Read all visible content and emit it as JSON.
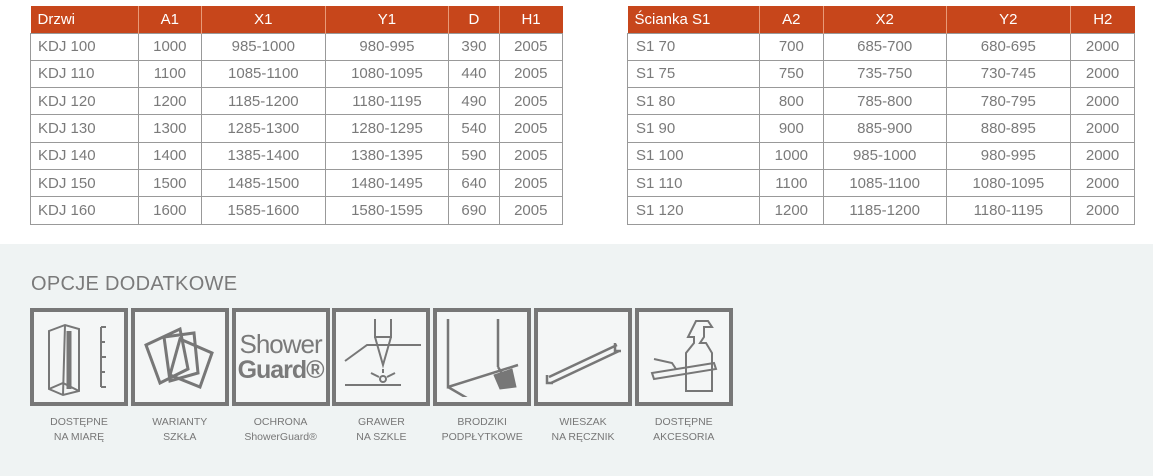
{
  "doors_table": {
    "headers": [
      "Drzwi",
      "A1",
      "X1",
      "Y1",
      "D",
      "H1"
    ],
    "rows": [
      [
        "KDJ 100",
        "1000",
        "985-1000",
        "980-995",
        "390",
        "2005"
      ],
      [
        "KDJ 110",
        "1100",
        "1085-1100",
        "1080-1095",
        "440",
        "2005"
      ],
      [
        "KDJ 120",
        "1200",
        "1185-1200",
        "1180-1195",
        "490",
        "2005"
      ],
      [
        "KDJ 130",
        "1300",
        "1285-1300",
        "1280-1295",
        "540",
        "2005"
      ],
      [
        "KDJ 140",
        "1400",
        "1385-1400",
        "1380-1395",
        "590",
        "2005"
      ],
      [
        "KDJ 150",
        "1500",
        "1485-1500",
        "1480-1495",
        "640",
        "2005"
      ],
      [
        "KDJ 160",
        "1600",
        "1585-1600",
        "1580-1595",
        "690",
        "2005"
      ]
    ]
  },
  "wall_table": {
    "headers": [
      "Ścianka S1",
      "A2",
      "X2",
      "Y2",
      "H2"
    ],
    "rows": [
      [
        "S1 70",
        "700",
        "685-700",
        "680-695",
        "2000"
      ],
      [
        "S1 75",
        "750",
        "735-750",
        "730-745",
        "2000"
      ],
      [
        "S1 80",
        "800",
        "785-800",
        "780-795",
        "2000"
      ],
      [
        "S1 90",
        "900",
        "885-900",
        "880-895",
        "2000"
      ],
      [
        "S1 100",
        "1000",
        "985-1000",
        "980-995",
        "2000"
      ],
      [
        "S1 110",
        "1100",
        "1085-1100",
        "1080-1095",
        "2000"
      ],
      [
        "S1 120",
        "1200",
        "1185-1200",
        "1180-1195",
        "2000"
      ]
    ]
  },
  "options": {
    "title": "OPCJE DODATKOWE",
    "items": [
      {
        "icon": "custom-size-icon",
        "line1": "DOSTĘPNE",
        "line2": "NA MIARĘ"
      },
      {
        "icon": "glass-variants-icon",
        "line1": "WARIANTY",
        "line2": "SZKŁA"
      },
      {
        "icon": "showerguard-logo-icon",
        "line1": "OCHRONA",
        "line2": "ShowerGuard®",
        "logo1": "Shower",
        "logo2": "Guard®"
      },
      {
        "icon": "glass-engraving-icon",
        "line1": "GRAWER",
        "line2": "NA SZKLE"
      },
      {
        "icon": "tiled-tray-icon",
        "line1": "BRODZIKI",
        "line2": "PODPŁYTKOWE"
      },
      {
        "icon": "towel-rail-icon",
        "line1": "WIESZAK",
        "line2": "NA RĘCZNIK"
      },
      {
        "icon": "accessories-icon",
        "line1": "DOSTĘPNE",
        "line2": "AKCESORIA"
      }
    ]
  },
  "colors": {
    "header": "#c7461b",
    "section_bg": "#eff3f3",
    "icon_gray": "#777777"
  }
}
